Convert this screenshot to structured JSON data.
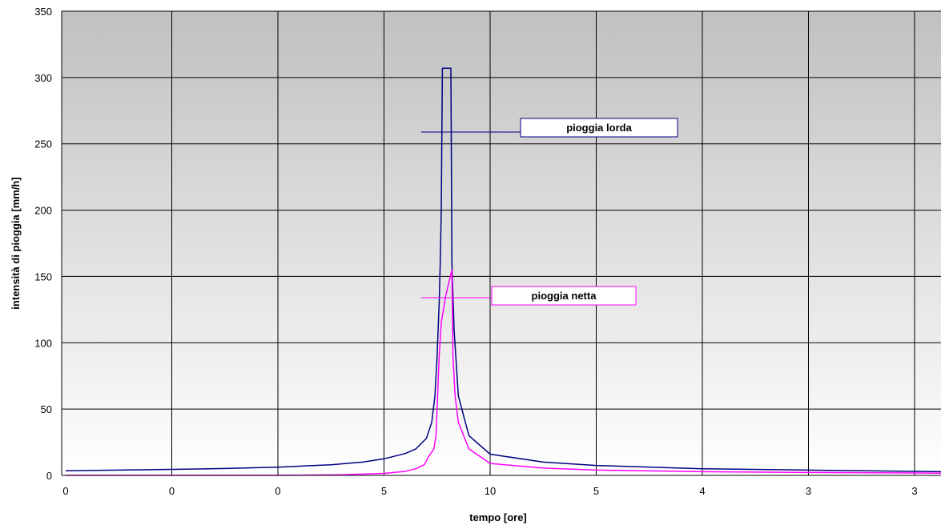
{
  "chart_data": {
    "type": "line",
    "xlabel": "tempo [ore]",
    "ylabel": "intensità di pioggia [mm/h]",
    "ylim": [
      0,
      350
    ],
    "y_ticks": [
      "0",
      "50",
      "100",
      "150",
      "200",
      "250",
      "300",
      "350"
    ],
    "x_tick_labels": [
      "0",
      "0",
      "0",
      "5",
      "10",
      "5",
      "4",
      "3",
      "3"
    ],
    "grid": true,
    "legend": "callout labels",
    "x_unit_note": "x values are category positions (0–8) matching the printed tick labels",
    "series": [
      {
        "name": "pioggia lorda",
        "color": "#000080",
        "points": [
          [
            0.0,
            3.5
          ],
          [
            0.5,
            4.0
          ],
          [
            1.0,
            4.5
          ],
          [
            1.5,
            5.2
          ],
          [
            2.0,
            6.2
          ],
          [
            2.5,
            8.0
          ],
          [
            2.8,
            10.0
          ],
          [
            3.0,
            12.5
          ],
          [
            3.2,
            16.5
          ],
          [
            3.3,
            20.0
          ],
          [
            3.4,
            28.0
          ],
          [
            3.45,
            40.0
          ],
          [
            3.48,
            60.0
          ],
          [
            3.5,
            90.0
          ],
          [
            3.52,
            130.0
          ],
          [
            3.53,
            160.0
          ],
          [
            3.54,
            200.0
          ],
          [
            3.55,
            307.0
          ],
          [
            3.63,
            307.0
          ],
          [
            3.64,
            160.0
          ],
          [
            3.66,
            110.0
          ],
          [
            3.7,
            60.0
          ],
          [
            3.8,
            30.0
          ],
          [
            4.0,
            16.0
          ],
          [
            4.5,
            10.0
          ],
          [
            5.0,
            7.5
          ],
          [
            6.0,
            5.0
          ],
          [
            7.0,
            4.0
          ],
          [
            8.0,
            3.0
          ],
          [
            8.26,
            2.8
          ]
        ]
      },
      {
        "name": "pioggia netta",
        "color": "#ff00ff",
        "points": [
          [
            0.0,
            0.0
          ],
          [
            2.0,
            0.0
          ],
          [
            2.6,
            0.5
          ],
          [
            3.0,
            1.5
          ],
          [
            3.2,
            3.0
          ],
          [
            3.3,
            5.0
          ],
          [
            3.38,
            8.0
          ],
          [
            3.42,
            14.0
          ],
          [
            3.47,
            20.0
          ],
          [
            3.49,
            30.0
          ],
          [
            3.5,
            50.0
          ],
          [
            3.52,
            90.0
          ],
          [
            3.54,
            115.0
          ],
          [
            3.58,
            135.0
          ],
          [
            3.64,
            155.0
          ],
          [
            3.65,
            90.0
          ],
          [
            3.67,
            60.0
          ],
          [
            3.7,
            40.0
          ],
          [
            3.8,
            20.0
          ],
          [
            4.0,
            9.0
          ],
          [
            4.5,
            5.5
          ],
          [
            5.0,
            4.0
          ],
          [
            6.0,
            2.8
          ],
          [
            7.0,
            2.2
          ],
          [
            8.0,
            1.8
          ],
          [
            8.26,
            1.7
          ]
        ]
      }
    ],
    "annotations": [
      {
        "text": "pioggia lorda",
        "series": "pioggia lorda"
      },
      {
        "text": "pioggia netta",
        "series": "pioggia netta"
      }
    ],
    "colors": {
      "plot_bg_top": "#c0c0c0",
      "plot_bg_bottom": "#ffffff",
      "grid": "#000000"
    }
  }
}
